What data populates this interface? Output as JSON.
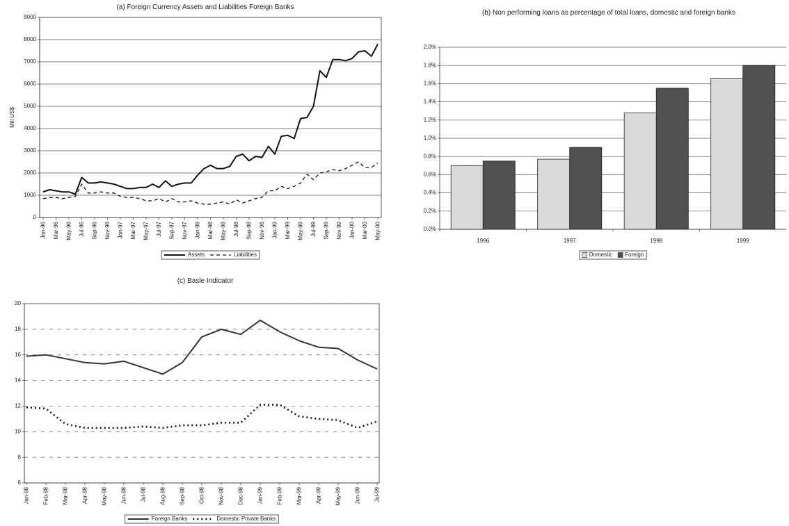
{
  "chart_data": [
    {
      "type": "line",
      "title": "(a) Foreign Currency Assets and Liabilities  Foreign Banks",
      "ylabel": "Mill US$",
      "categories": [
        "Jan-96",
        null,
        "Mar-96",
        null,
        "May-96",
        null,
        "Jul-96",
        null,
        "Sep-96",
        null,
        "Nov-96",
        null,
        "Jan-97",
        null,
        "Mar-97",
        null,
        "May-97",
        null,
        "Jul-97",
        null,
        "Sep-97",
        null,
        "Nov-97",
        null,
        "Jan-98",
        null,
        "Mar-98",
        null,
        "May-98",
        null,
        "Jul-98",
        null,
        "Sep-98",
        null,
        "Nov-98",
        null,
        "Jan-99",
        null,
        "Mar-99",
        null,
        "May-99",
        null,
        "Jul-99",
        null,
        "Sep-99",
        null,
        "Nov-99",
        null,
        "Jan-00",
        null,
        "Mar-00",
        null,
        "May-00"
      ],
      "series": [
        {
          "name": "Assets",
          "color": "#111111",
          "line_style": "solid",
          "values": [
            1150,
            1250,
            1200,
            1150,
            1150,
            1050,
            1800,
            1550,
            1550,
            1600,
            1550,
            1500,
            1400,
            1300,
            1300,
            1350,
            1350,
            1500,
            1350,
            1650,
            1400,
            1500,
            1550,
            1550,
            1900,
            2200,
            2350,
            2200,
            2200,
            2300,
            2750,
            2850,
            2550,
            2750,
            2700,
            3200,
            2850,
            3650,
            3700,
            3550,
            4450,
            4500,
            5000,
            6600,
            6300,
            7100,
            7100,
            7050,
            7150,
            7450,
            7500,
            7250,
            7800
          ]
        },
        {
          "name": "Liabilities",
          "color": "#111111",
          "line_style": "dashed",
          "values": [
            850,
            900,
            900,
            850,
            900,
            950,
            1500,
            1100,
            1100,
            1150,
            1100,
            1100,
            950,
            900,
            900,
            850,
            750,
            750,
            850,
            700,
            850,
            700,
            700,
            750,
            650,
            600,
            600,
            650,
            700,
            600,
            800,
            650,
            750,
            850,
            900,
            1200,
            1200,
            1400,
            1300,
            1400,
            1550,
            1950,
            1700,
            2000,
            2050,
            2150,
            2100,
            2200,
            2350,
            2500,
            2250,
            2250,
            2450
          ]
        }
      ],
      "ylim": [
        0,
        9000
      ],
      "yticks": [
        0,
        1000,
        2000,
        3000,
        4000,
        5000,
        6000,
        7000,
        8000,
        9000
      ],
      "grid": true
    },
    {
      "type": "bar",
      "title": "(b) Non performing loans as percentage of total loans, domestic and foreign banks",
      "categories": [
        "1996",
        "1997",
        "1998",
        "1999"
      ],
      "series": [
        {
          "name": "Domestic",
          "color": "#d9d9d9",
          "values": [
            0.7,
            0.77,
            1.28,
            1.66
          ]
        },
        {
          "name": "Foreign",
          "color": "#505050",
          "values": [
            0.75,
            0.9,
            1.55,
            1.8
          ]
        }
      ],
      "ylim": [
        0,
        2.0
      ],
      "yticks": [
        {
          "value": 0,
          "label": "0.0%"
        },
        {
          "value": 0.2,
          "label": "0.2%"
        },
        {
          "value": 0.4,
          "label": "0.4%"
        },
        {
          "value": 0.6,
          "label": "0.6%"
        },
        {
          "value": 0.8,
          "label": "0.8%"
        },
        {
          "value": 1.0,
          "label": "1.0%"
        },
        {
          "value": 1.2,
          "label": "1.2%"
        },
        {
          "value": 1.4,
          "label": "1.4%"
        },
        {
          "value": 1.6,
          "label": "1.6%"
        },
        {
          "value": 1.8,
          "label": "1.8%"
        },
        {
          "value": 2.0,
          "label": "2.0%"
        }
      ],
      "grid": true
    },
    {
      "type": "line",
      "title": "(c) Basle Indicator",
      "categories": [
        "Jan-98",
        "Feb-98",
        "Mar-98",
        "Apr-98",
        "May-98",
        "Jun-98",
        "Jul-98",
        "Aug-98",
        "Sep-98",
        "Oct-98",
        "Nov-98",
        "Dec-98",
        "Jan-99",
        "Feb-99",
        "Mar-99",
        "Apr-99",
        "May-99",
        "Jun-99",
        "Jul-99"
      ],
      "series": [
        {
          "name": "Foreign Banks",
          "color": "#333333",
          "line_style": "solid",
          "values": [
            15.9,
            16.0,
            15.7,
            15.4,
            15.3,
            15.5,
            15.0,
            14.5,
            15.4,
            17.4,
            18.0,
            17.6,
            18.7,
            17.8,
            17.1,
            16.6,
            16.5,
            15.6,
            14.9
          ]
        },
        {
          "name": "Domestic Private Banks",
          "color": "#111111",
          "line_style": "dotted",
          "values": [
            11.9,
            11.8,
            10.6,
            10.3,
            10.3,
            10.3,
            10.4,
            10.3,
            10.5,
            10.5,
            10.7,
            10.7,
            12.1,
            12.1,
            11.2,
            11.0,
            10.9,
            10.3,
            10.8
          ]
        }
      ],
      "ylim": [
        6,
        20
      ],
      "yticks": [
        6,
        8,
        10,
        12,
        14,
        16,
        18,
        20
      ],
      "grid": true
    }
  ]
}
